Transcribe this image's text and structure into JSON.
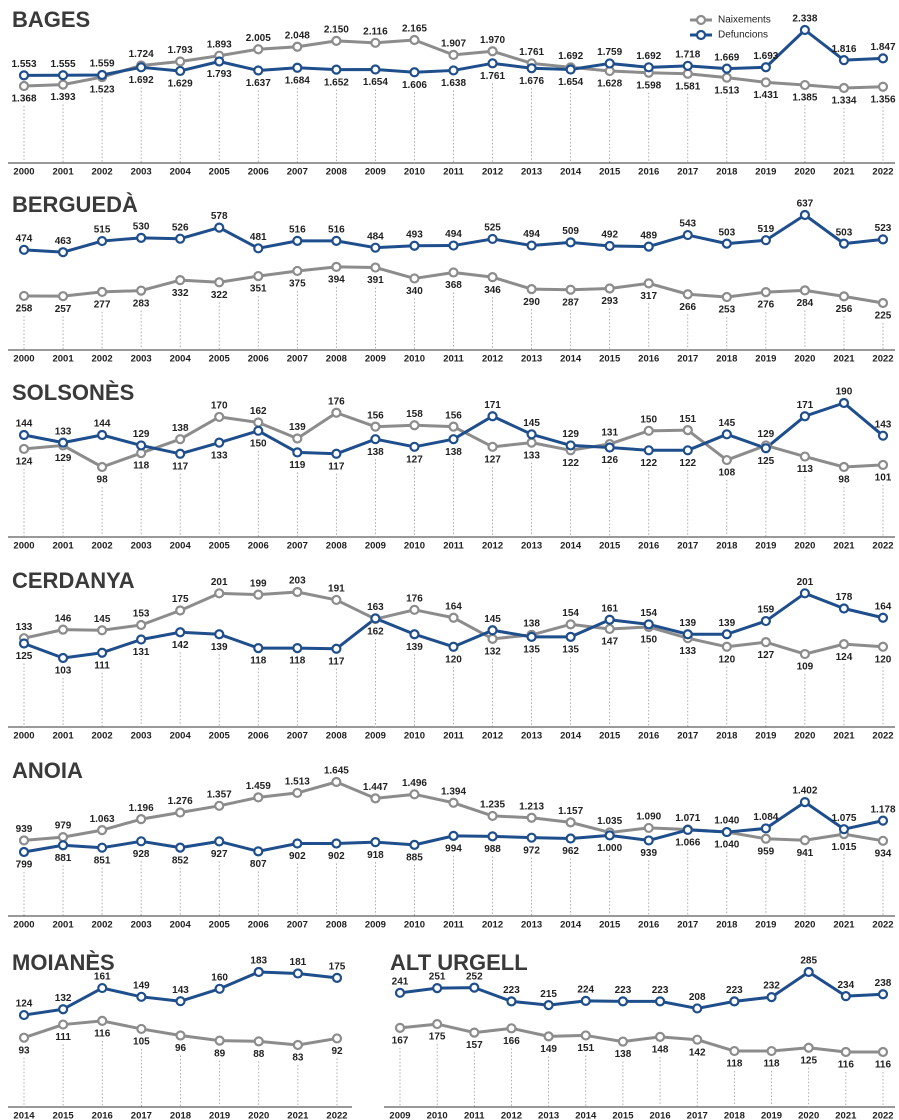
{
  "chart_data": [
    {
      "type": "line",
      "title": "BAGES",
      "legend": "top-right",
      "grid": true,
      "categories": [
        "2000",
        "2001",
        "2002",
        "2003",
        "2004",
        "2005",
        "2006",
        "2007",
        "2008",
        "2009",
        "2010",
        "2011",
        "2012",
        "2013",
        "2014",
        "2015",
        "2016",
        "2017",
        "2018",
        "2019",
        "2020",
        "2021",
        "2022"
      ],
      "series": [
        {
          "name": "Naixements",
          "color": "#8c8c8c",
          "values": [
            1368,
            1393,
            1523,
            1724,
            1793,
            1893,
            2005,
            2048,
            2150,
            2116,
            2165,
            1907,
            1970,
            1761,
            1692,
            1628,
            1598,
            1581,
            1513,
            1431,
            1385,
            1334,
            1356
          ],
          "value_labels": [
            "1.368",
            "1.393",
            "1.523",
            "1.724",
            "1.793",
            "1.893",
            "2.005",
            "2.048",
            "2.150",
            "2.116",
            "2.165",
            "1.907",
            "1.970",
            "1.761",
            "1.692",
            "1.628",
            "1.598",
            "1.581",
            "1.513",
            "1.431",
            "1.385",
            "1.334",
            "1.356"
          ]
        },
        {
          "name": "Defuncions",
          "color": "#1f4e8c",
          "values": [
            1553,
            1555,
            1559,
            1692,
            1629,
            1793,
            1637,
            1684,
            1652,
            1654,
            1606,
            1638,
            1761,
            1676,
            1654,
            1759,
            1692,
            1718,
            1669,
            1693,
            2338,
            1816,
            1847
          ],
          "value_labels": [
            "1.553",
            "1.555",
            "1.559",
            "1.692",
            "1.629",
            "1.793",
            "1.637",
            "1.684",
            "1.652",
            "1.654",
            "1.606",
            "1.638",
            "1.761",
            "1.676",
            "1.654",
            "1.759",
            "1.692",
            "1.718",
            "1.669",
            "1.693",
            "2.338",
            "1.816",
            "1.847"
          ]
        }
      ]
    },
    {
      "type": "line",
      "title": "BERGUEDÀ",
      "grid": true,
      "categories": [
        "2000",
        "2001",
        "2002",
        "2003",
        "2004",
        "2005",
        "2006",
        "2007",
        "2008",
        "2009",
        "2010",
        "2011",
        "2012",
        "2013",
        "2014",
        "2015",
        "2016",
        "2017",
        "2018",
        "2019",
        "2020",
        "2021",
        "2022"
      ],
      "series": [
        {
          "color": "#8c8c8c",
          "values": [
            258,
            257,
            277,
            283,
            332,
            322,
            351,
            375,
            394,
            391,
            340,
            368,
            346,
            290,
            287,
            293,
            317,
            266,
            253,
            276,
            284,
            256,
            225
          ]
        },
        {
          "color": "#1f4e8c",
          "values": [
            474,
            463,
            515,
            530,
            526,
            578,
            481,
            516,
            516,
            484,
            493,
            494,
            525,
            494,
            509,
            492,
            489,
            543,
            503,
            519,
            637,
            503,
            523
          ]
        }
      ]
    },
    {
      "type": "line",
      "title": "SOLSONÈS",
      "grid": true,
      "categories": [
        "2000",
        "2001",
        "2002",
        "2003",
        "2004",
        "2005",
        "2006",
        "2007",
        "2008",
        "2009",
        "2010",
        "2011",
        "2012",
        "2013",
        "2014",
        "2015",
        "2016",
        "2017",
        "2018",
        "2019",
        "2020",
        "2021",
        "2022"
      ],
      "series": [
        {
          "color": "#8c8c8c",
          "values": [
            124,
            129,
            98,
            118,
            138,
            170,
            162,
            139,
            176,
            156,
            158,
            156,
            127,
            133,
            122,
            131,
            150,
            151,
            108,
            129,
            113,
            98,
            101
          ]
        },
        {
          "color": "#1f4e8c",
          "values": [
            144,
            133,
            144,
            129,
            117,
            133,
            150,
            119,
            117,
            138,
            127,
            138,
            171,
            145,
            129,
            126,
            122,
            122,
            145,
            125,
            171,
            190,
            143
          ]
        }
      ]
    },
    {
      "type": "line",
      "title": "CERDANYA",
      "grid": true,
      "categories": [
        "2000",
        "2001",
        "2002",
        "2003",
        "2004",
        "2005",
        "2006",
        "2007",
        "2008",
        "2009",
        "2010",
        "2011",
        "2012",
        "2013",
        "2014",
        "2015",
        "2016",
        "2017",
        "2018",
        "2019",
        "2020",
        "2021",
        "2022"
      ],
      "series": [
        {
          "color": "#8c8c8c",
          "values": [
            133,
            146,
            145,
            153,
            175,
            201,
            199,
            203,
            191,
            162,
            176,
            164,
            132,
            138,
            154,
            147,
            150,
            133,
            120,
            127,
            109,
            124,
            120
          ]
        },
        {
          "color": "#1f4e8c",
          "values": [
            125,
            103,
            111,
            131,
            142,
            139,
            118,
            118,
            117,
            163,
            139,
            120,
            145,
            135,
            135,
            161,
            154,
            139,
            139,
            159,
            201,
            178,
            164
          ]
        }
      ]
    },
    {
      "type": "line",
      "title": "ANOIA",
      "grid": true,
      "categories": [
        "2000",
        "2001",
        "2002",
        "2003",
        "2004",
        "2005",
        "2006",
        "2007",
        "2008",
        "2009",
        "2010",
        "2011",
        "2012",
        "2013",
        "2014",
        "2015",
        "2016",
        "2017",
        "2018",
        "2019",
        "2020",
        "2021",
        "2022"
      ],
      "series": [
        {
          "color": "#8c8c8c",
          "values": [
            939,
            979,
            1063,
            1196,
            1276,
            1357,
            1459,
            1513,
            1645,
            1447,
            1496,
            1394,
            1235,
            1213,
            1157,
            1035,
            1090,
            1071,
            1040,
            959,
            941,
            1015,
            934
          ],
          "value_labels": [
            "939",
            "979",
            "1.063",
            "1.196",
            "1.276",
            "1.357",
            "1.459",
            "1.513",
            "1.645",
            "1.447",
            "1.496",
            "1.394",
            "1.235",
            "1.213",
            "1.157",
            "1.035",
            "1.090",
            "1.071",
            "1.040",
            "959",
            "941",
            "1.015",
            "934"
          ]
        },
        {
          "color": "#1f4e8c",
          "values": [
            799,
            881,
            851,
            928,
            852,
            927,
            807,
            902,
            902,
            918,
            885,
            994,
            988,
            972,
            962,
            1000,
            939,
            1066,
            1040,
            1084,
            1402,
            1075,
            1178
          ],
          "value_labels": [
            "799",
            "881",
            "851",
            "928",
            "852",
            "927",
            "807",
            "902",
            "902",
            "918",
            "885",
            "994",
            "988",
            "972",
            "962",
            "1.000",
            "939",
            "1.066",
            "1.040",
            "1.084",
            "1.402",
            "1.075",
            "1.178"
          ]
        }
      ]
    },
    {
      "type": "line",
      "title": "MOIANÈS",
      "grid": true,
      "categories": [
        "2014",
        "2015",
        "2016",
        "2017",
        "2018",
        "2019",
        "2020",
        "2021",
        "2022"
      ],
      "series": [
        {
          "color": "#8c8c8c",
          "values": [
            93,
            111,
            116,
            105,
            96,
            89,
            88,
            83,
            92
          ]
        },
        {
          "color": "#1f4e8c",
          "values": [
            124,
            132,
            161,
            149,
            143,
            160,
            183,
            181,
            175
          ]
        }
      ]
    },
    {
      "type": "line",
      "title": "ALT URGELL",
      "grid": true,
      "categories": [
        "2009",
        "2010",
        "2011",
        "2012",
        "2013",
        "2014",
        "2015",
        "2016",
        "2017",
        "2018",
        "2019",
        "2020",
        "2021",
        "2022"
      ],
      "series": [
        {
          "color": "#8c8c8c",
          "values": [
            167,
            175,
            157,
            166,
            149,
            151,
            138,
            148,
            142,
            118,
            118,
            125,
            116,
            116
          ]
        },
        {
          "color": "#1f4e8c",
          "values": [
            241,
            251,
            252,
            223,
            215,
            224,
            223,
            223,
            208,
            223,
            232,
            285,
            234,
            238
          ]
        }
      ]
    }
  ]
}
